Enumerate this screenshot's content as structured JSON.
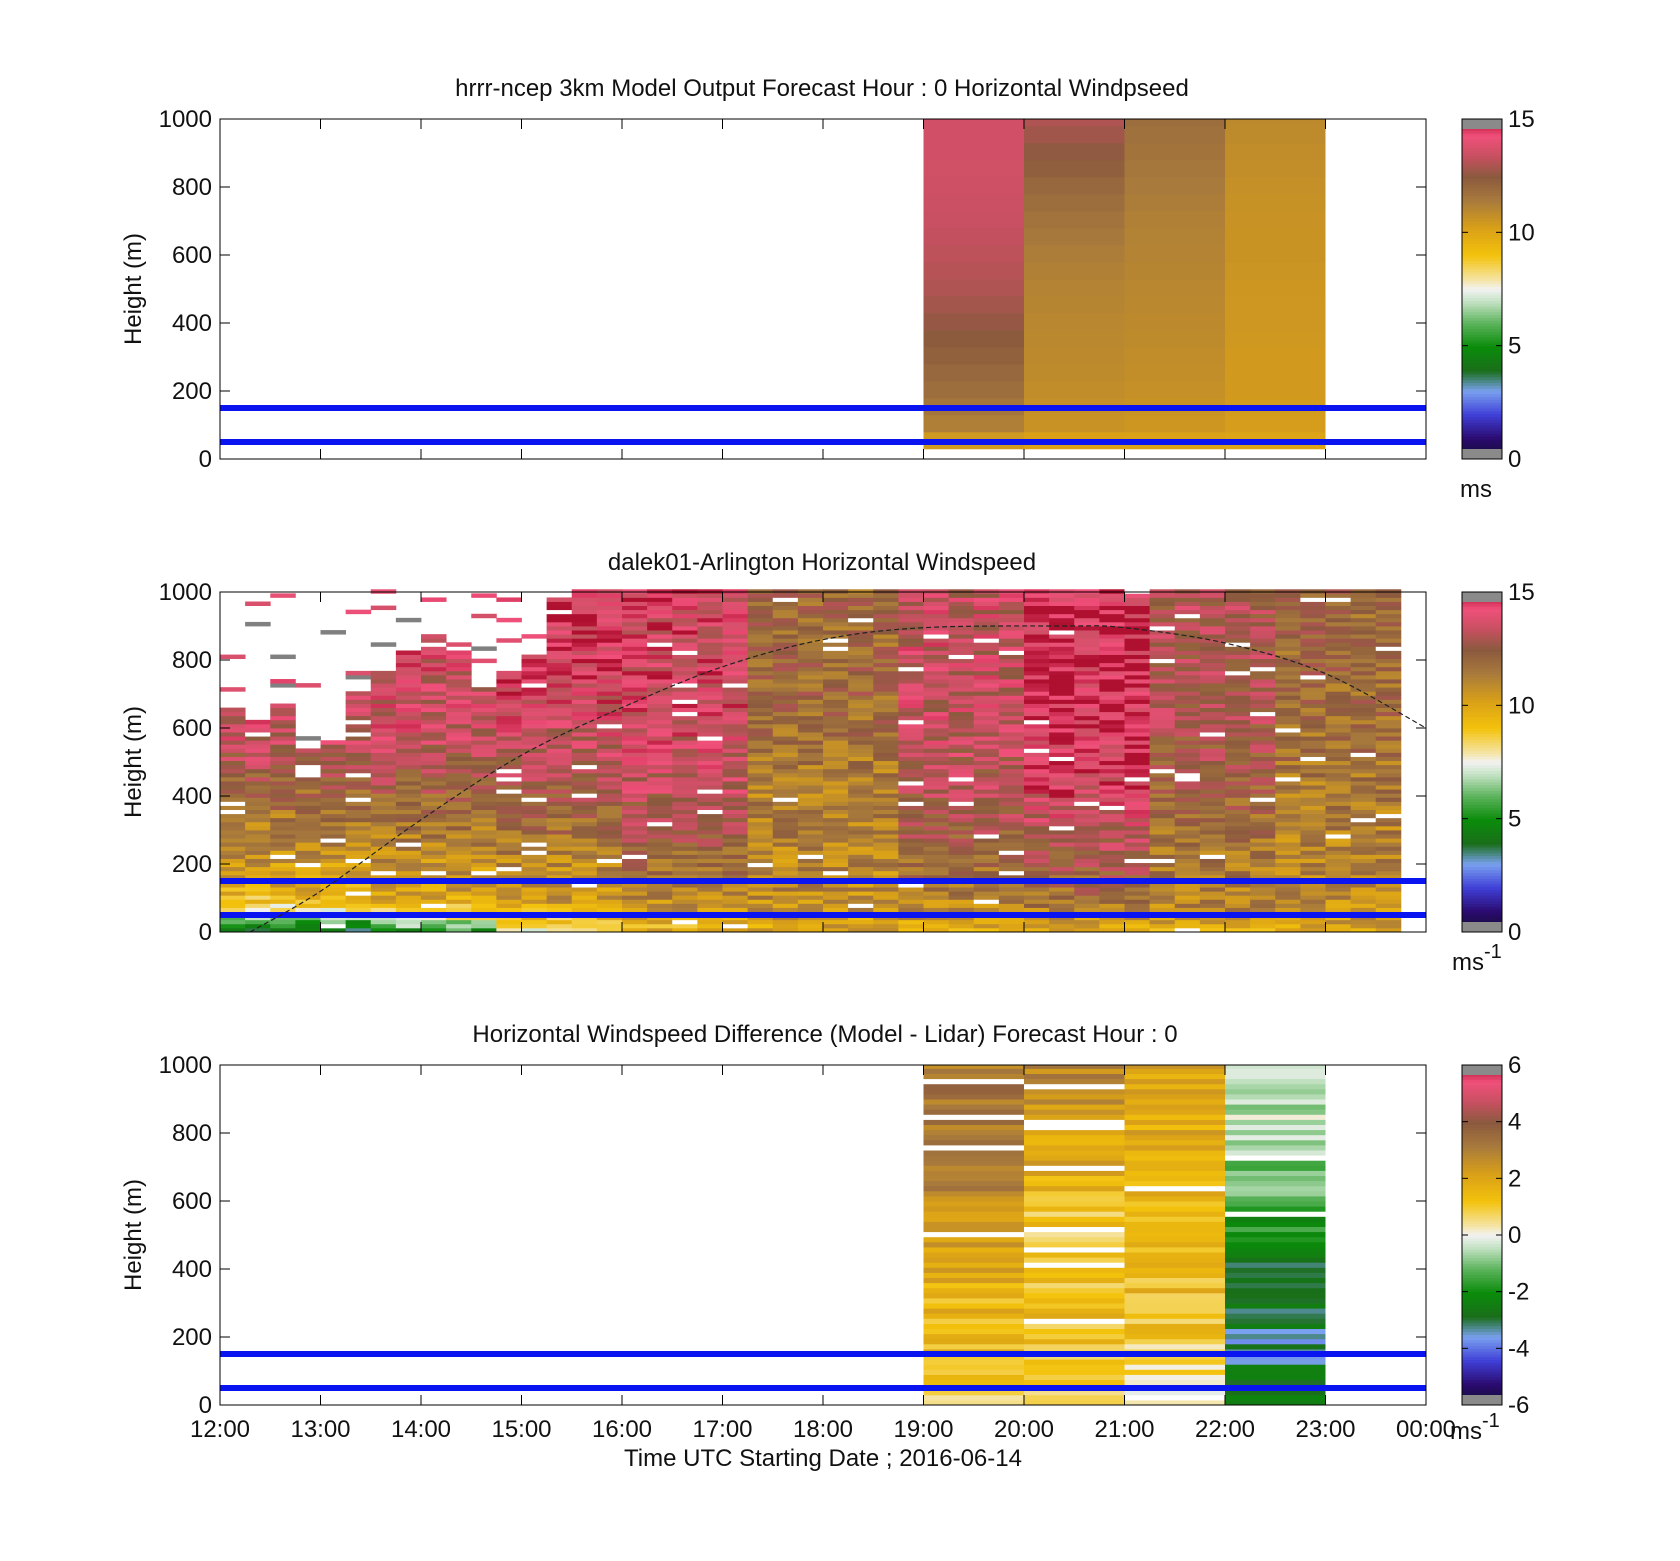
{
  "chart_data": [
    {
      "type": "heatmap",
      "title": "hrrr-ncep 3km Model Output   Forecast Hour : 0 Horizontal Windpseed",
      "ylabel": "Height (m)",
      "ylim": [
        0,
        1000
      ],
      "yticks": [
        "0",
        "200",
        "400",
        "600",
        "800",
        "1000"
      ],
      "x_range_hours_utc": [
        12,
        24
      ],
      "colorbar": {
        "min": 0,
        "max": 15,
        "ticks": [
          "0",
          "5",
          "10",
          "15"
        ],
        "unit": "ms"
      },
      "reference_lines_m": [
        50,
        150
      ],
      "grid": false,
      "columns": [
        {
          "time_start": "19:00",
          "time_end": "20:00",
          "levels_m": [
            30,
            100,
            200,
            300,
            400,
            500,
            600,
            700,
            800,
            900,
            1000
          ],
          "values": [
            10.0,
            11.2,
            11.8,
            12.2,
            12.6,
            13.0,
            13.2,
            13.4,
            13.5,
            13.6,
            13.6
          ]
        },
        {
          "time_start": "20:00",
          "time_end": "21:00",
          "levels_m": [
            30,
            100,
            200,
            300,
            400,
            500,
            600,
            700,
            800,
            900,
            1000
          ],
          "values": [
            9.9,
            10.6,
            10.8,
            10.9,
            11.0,
            11.1,
            11.3,
            11.6,
            12.0,
            12.5,
            13.0
          ]
        },
        {
          "time_start": "21:00",
          "time_end": "22:00",
          "levels_m": [
            30,
            100,
            200,
            300,
            400,
            500,
            600,
            700,
            800,
            900,
            1000
          ],
          "values": [
            9.9,
            10.5,
            10.7,
            10.8,
            10.9,
            11.0,
            11.1,
            11.2,
            11.4,
            11.6,
            11.8
          ]
        },
        {
          "time_start": "22:00",
          "time_end": "23:00",
          "levels_m": [
            30,
            100,
            200,
            300,
            400,
            500,
            600,
            700,
            800,
            900,
            1000
          ],
          "values": [
            9.9,
            10.3,
            10.4,
            10.4,
            10.5,
            10.5,
            10.6,
            10.6,
            10.7,
            10.8,
            10.9
          ]
        }
      ]
    },
    {
      "type": "heatmap",
      "title": "dalek01-Arlington  Horizontal Windspeed",
      "ylabel": "Height (m)",
      "ylim": [
        0,
        1000
      ],
      "yticks": [
        "0",
        "200",
        "400",
        "600",
        "800",
        "1000"
      ],
      "x_range_hours_utc": [
        12,
        24
      ],
      "colorbar": {
        "min": 0,
        "max": 15,
        "ticks": [
          "0",
          "5",
          "10",
          "15"
        ],
        "unit": "ms",
        "unit_exponent": "-1"
      },
      "reference_lines_m": [
        50,
        150
      ],
      "grid": false,
      "column_width_hours": 0.25,
      "columns_start": "12:00",
      "column_tops_m": [
        650,
        620,
        660,
        540,
        560,
        700,
        760,
        820,
        870,
        820,
        720,
        760,
        800,
        980,
        1000,
        1000,
        1000,
        1000,
        1000,
        1000,
        1000,
        1000,
        1000,
        1000,
        1000,
        1000,
        1000,
        1000,
        1000,
        1000,
        1000,
        1000,
        1000,
        1000,
        1000,
        1000,
        1000,
        1000,
        1000,
        1000,
        1000,
        1000,
        1000,
        1000,
        1000,
        1000,
        1000
      ],
      "column_profiles": [
        {
          "levels_m": [
            0,
            50,
            100,
            200,
            300,
            400,
            500,
            600,
            700,
            800,
            900,
            1000
          ],
          "values": [
            4.0,
            7.5,
            9.5,
            10.5,
            11.2,
            12.0,
            13.0,
            13.6,
            13.6,
            13.8,
            14.0,
            14.0
          ]
        },
        {
          "levels_m": [
            0,
            50,
            100,
            200,
            300,
            400,
            500,
            600,
            700,
            800,
            900,
            1000
          ],
          "values": [
            5.5,
            8.5,
            10.0,
            10.8,
            11.5,
            12.3,
            13.0,
            13.6,
            13.6,
            13.8,
            14.0,
            14.0
          ]
        },
        {
          "levels_m": [
            0,
            50,
            100,
            200,
            300,
            400,
            500,
            600,
            700,
            800,
            900,
            1000
          ],
          "values": [
            8.0,
            9.6,
            10.5,
            11.0,
            11.8,
            12.5,
            13.2,
            13.6,
            14.0,
            14.2,
            14.4,
            14.4
          ]
        },
        {
          "levels_m": [
            0,
            50,
            100,
            200,
            300,
            400,
            500,
            600,
            700,
            800,
            900,
            1000
          ],
          "values": [
            9.5,
            10.2,
            11.0,
            11.8,
            12.6,
            13.2,
            13.5,
            13.8,
            14.0,
            14.0,
            14.0,
            14.0
          ]
        },
        {
          "levels_m": [
            0,
            50,
            100,
            200,
            300,
            400,
            500,
            600,
            700,
            800,
            900,
            1000
          ],
          "values": [
            9.8,
            10.5,
            10.8,
            11.0,
            11.2,
            11.3,
            11.5,
            11.8,
            12.0,
            12.0,
            12.0,
            12.0
          ]
        },
        {
          "levels_m": [
            0,
            50,
            100,
            200,
            300,
            400,
            500,
            600,
            700,
            800,
            900,
            1000
          ],
          "values": [
            9.8,
            10.6,
            11.2,
            12.0,
            12.6,
            13.0,
            13.2,
            13.4,
            13.5,
            13.5,
            13.5,
            13.5
          ]
        },
        {
          "levels_m": [
            0,
            50,
            100,
            200,
            300,
            400,
            500,
            600,
            700,
            800,
            900,
            1000
          ],
          "values": [
            9.8,
            11.0,
            11.8,
            12.6,
            13.4,
            14.0,
            14.4,
            14.6,
            14.6,
            14.6,
            14.6,
            14.6
          ]
        },
        {
          "levels_m": [
            0,
            50,
            100,
            200,
            300,
            400,
            500,
            600,
            700,
            800,
            900,
            1000
          ],
          "values": [
            9.8,
            10.8,
            11.2,
            11.5,
            11.8,
            12.2,
            12.6,
            12.8,
            13.0,
            13.0,
            13.0,
            13.0
          ]
        },
        {
          "levels_m": [
            0,
            50,
            100,
            200,
            300,
            400,
            500,
            600,
            700,
            800,
            900,
            1000
          ],
          "values": [
            9.8,
            10.5,
            10.8,
            11.0,
            11.2,
            11.4,
            11.6,
            11.8,
            12.0,
            12.0,
            12.0,
            12.0
          ]
        }
      ],
      "curve": {
        "style": "dashed",
        "points": [
          [
            12.3,
            0
          ],
          [
            13,
            120
          ],
          [
            14,
            330
          ],
          [
            15,
            520
          ],
          [
            16,
            660
          ],
          [
            17,
            780
          ],
          [
            18,
            860
          ],
          [
            19,
            895
          ],
          [
            20.4,
            900
          ],
          [
            21,
            895
          ],
          [
            22,
            850
          ],
          [
            23,
            760
          ],
          [
            24,
            600
          ]
        ]
      }
    },
    {
      "type": "heatmap",
      "title": "Horizontal Windspeed Difference (Model - Lidar) Forecast Hour : 0",
      "ylabel": "Height (m)",
      "xlabel": "Time UTC  Starting Date ; 2016-06-14",
      "ylim": [
        0,
        1000
      ],
      "yticks": [
        "0",
        "200",
        "400",
        "600",
        "800",
        "1000"
      ],
      "xticks": [
        "12:00",
        "13:00",
        "14:00",
        "15:00",
        "16:00",
        "17:00",
        "18:00",
        "19:00",
        "20:00",
        "21:00",
        "22:00",
        "23:00",
        "00:00"
      ],
      "x_range_hours_utc": [
        12,
        24
      ],
      "colorbar": {
        "min": -6,
        "max": 6,
        "ticks": [
          "-6",
          "-4",
          "-2",
          "0",
          "2",
          "4",
          "6"
        ],
        "unit": "ms",
        "unit_exponent": "-1"
      },
      "reference_lines_m": [
        50,
        150
      ],
      "grid": false,
      "columns": [
        {
          "time_start": "19:00",
          "time_end": "20:00",
          "levels_m": [
            0,
            50,
            100,
            200,
            300,
            400,
            500,
            600,
            700,
            800,
            900,
            1000
          ],
          "values": [
            0.5,
            1.0,
            1.2,
            1.4,
            1.6,
            1.9,
            2.2,
            2.6,
            2.8,
            3.0,
            3.0,
            3.2
          ]
        },
        {
          "time_start": "20:00",
          "time_end": "21:00",
          "levels_m": [
            0,
            50,
            100,
            200,
            300,
            400,
            500,
            600,
            700,
            800,
            900,
            1000
          ],
          "values": [
            0.2,
            0.6,
            0.9,
            1.2,
            1.3,
            1.2,
            1.0,
            1.3,
            1.7,
            2.2,
            2.6,
            3.0
          ]
        },
        {
          "time_start": "21:00",
          "time_end": "22:00",
          "levels_m": [
            0,
            50,
            100,
            200,
            300,
            400,
            500,
            600,
            700,
            800,
            900,
            1000
          ],
          "values": [
            -0.3,
            0.2,
            0.6,
            1.0,
            1.3,
            1.5,
            1.6,
            1.7,
            1.8,
            1.9,
            2.0,
            2.0
          ]
        },
        {
          "time_start": "22:00",
          "time_end": "23:00",
          "levels_m": [
            0,
            50,
            100,
            200,
            300,
            400,
            500,
            600,
            700,
            800,
            900,
            1000
          ],
          "values": [
            -2.4,
            -2.6,
            -3.0,
            -3.2,
            -3.0,
            -2.6,
            -2.0,
            -1.4,
            -1.0,
            -0.6,
            -0.5,
            -0.4
          ]
        }
      ]
    }
  ]
}
